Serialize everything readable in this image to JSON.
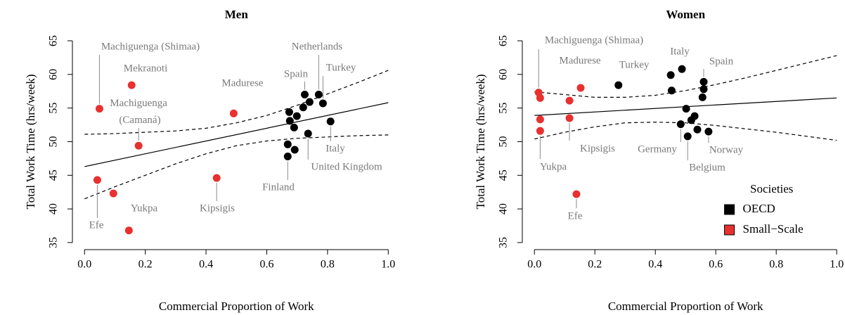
{
  "chart_data": [
    {
      "type": "scatter",
      "title": "Men",
      "x_label": "Commercial Proportion of Work",
      "y_label": "Total Work Time (hrs/week)",
      "xlim": [
        -0.04,
        1.04
      ],
      "ylim": [
        33.95,
        66.36
      ],
      "xticks": [
        {
          "value": 0,
          "label": "0.0"
        },
        0.2,
        0.4,
        0.6,
        0.8,
        {
          "value": 1,
          "label": "1.0"
        }
      ],
      "yticks": [
        35,
        40,
        45,
        50,
        55,
        60,
        65
      ],
      "series": [
        {
          "color": "#000000",
          "x": [
            0.674,
            0.676,
            0.699,
            0.69,
            0.725,
            0.72,
            0.741,
            0.771,
            0.785,
            0.81,
            0.736,
            0.669,
            0.692,
            0.669
          ],
          "values": [
            54.4,
            53.1,
            53.8,
            52.1,
            57.0,
            55.1,
            55.9,
            57.0,
            55.7,
            53.0,
            51.2,
            49.6,
            48.8,
            47.8
          ],
          "labels": [
            null,
            null,
            null,
            null,
            "Spain",
            null,
            null,
            "Netherlands",
            "Turkey",
            "Italy",
            "United Kingdom",
            null,
            null,
            "Finland"
          ]
        },
        {
          "color": "#e8302f",
          "x": [
            0.049,
            0.155,
            0.178,
            0.491,
            0.042,
            0.095,
            0.146,
            0.435
          ],
          "values": [
            54.9,
            58.4,
            49.4,
            54.2,
            44.3,
            42.3,
            36.8,
            44.6
          ],
          "labels": [
            "Machiguenga (Shimaa)",
            "Mekranoti",
            "Machiguenga (Camaná)",
            "Madurese",
            "Efe",
            null,
            "Yukpa",
            "Kipsigis"
          ]
        }
      ],
      "lines": [
        {
          "style": "solid",
          "x": [
            0,
            1
          ],
          "y": [
            46.3,
            55.8
          ]
        },
        {
          "style": "dashed",
          "x": [
            0,
            0.1,
            0.2,
            0.3,
            0.4,
            0.5,
            0.6,
            0.7,
            0.8,
            0.9,
            1
          ],
          "y": [
            51.1,
            51.2,
            51.4,
            51.6,
            52.0,
            52.8,
            53.9,
            55.4,
            57.1,
            58.8,
            60.6
          ]
        },
        {
          "style": "dashed",
          "x": [
            0,
            0.1,
            0.2,
            0.3,
            0.4,
            0.5,
            0.6,
            0.7,
            0.8,
            0.9,
            1
          ],
          "y": [
            41.5,
            43.3,
            45.0,
            46.7,
            48.2,
            49.4,
            50.1,
            50.5,
            50.7,
            50.9,
            51.0
          ]
        }
      ]
    },
    {
      "type": "scatter",
      "title": "Women",
      "x_label": "Commercial Proportion of Work",
      "y_label": "Total Work Time (hrs/week)",
      "xlim": [
        -0.04,
        1.04
      ],
      "ylim": [
        33.95,
        66.36
      ],
      "xticks": [
        {
          "value": 0,
          "label": "0.0"
        },
        0.2,
        0.4,
        0.6,
        0.8,
        {
          "value": 1,
          "label": "1.0"
        }
      ],
      "yticks": [
        35,
        40,
        45,
        50,
        55,
        60,
        65
      ],
      "legend": "right",
      "legend_title": "Societies",
      "series": [
        {
          "name": "OECD",
          "color": "#000000",
          "x": [
            0.278,
            0.451,
            0.488,
            0.454,
            0.56,
            0.56,
            0.556,
            0.502,
            0.53,
            0.519,
            0.484,
            0.507,
            0.539,
            0.576
          ],
          "values": [
            58.4,
            59.9,
            60.8,
            57.6,
            57.8,
            58.9,
            56.6,
            54.9,
            53.8,
            53.2,
            52.6,
            50.8,
            51.8,
            51.5
          ],
          "labels": [
            "Turkey",
            null,
            "Italy",
            null,
            null,
            "Spain",
            null,
            null,
            null,
            null,
            "Germany",
            "Belgium",
            null,
            "Norway"
          ]
        },
        {
          "name": "Small−Scale",
          "color": "#e8302f",
          "x": [
            0.014,
            0.019,
            0.019,
            0.019,
            0.153,
            0.116,
            0.116,
            0.139
          ],
          "values": [
            57.3,
            56.5,
            53.3,
            51.6,
            58.0,
            56.1,
            53.5,
            42.2
          ],
          "labels": [
            "Machiguenga (Shimaa)",
            null,
            null,
            "Yukpa",
            "Madurese",
            null,
            "Kipsigis",
            "Efe"
          ]
        }
      ],
      "lines": [
        {
          "style": "solid",
          "x": [
            0,
            1
          ],
          "y": [
            53.9,
            56.5
          ]
        },
        {
          "style": "dashed",
          "x": [
            0,
            0.1,
            0.2,
            0.3,
            0.4,
            0.5,
            0.6,
            0.7,
            0.8,
            0.9,
            1
          ],
          "y": [
            57.4,
            57.0,
            56.6,
            56.6,
            56.9,
            57.6,
            58.5,
            59.5,
            60.6,
            61.7,
            62.8
          ]
        },
        {
          "style": "dashed",
          "x": [
            0,
            0.1,
            0.2,
            0.3,
            0.4,
            0.5,
            0.6,
            0.7,
            0.8,
            0.9,
            1
          ],
          "y": [
            50.4,
            51.4,
            52.2,
            52.8,
            52.9,
            52.8,
            52.4,
            51.9,
            51.4,
            50.8,
            50.2
          ]
        }
      ]
    }
  ]
}
